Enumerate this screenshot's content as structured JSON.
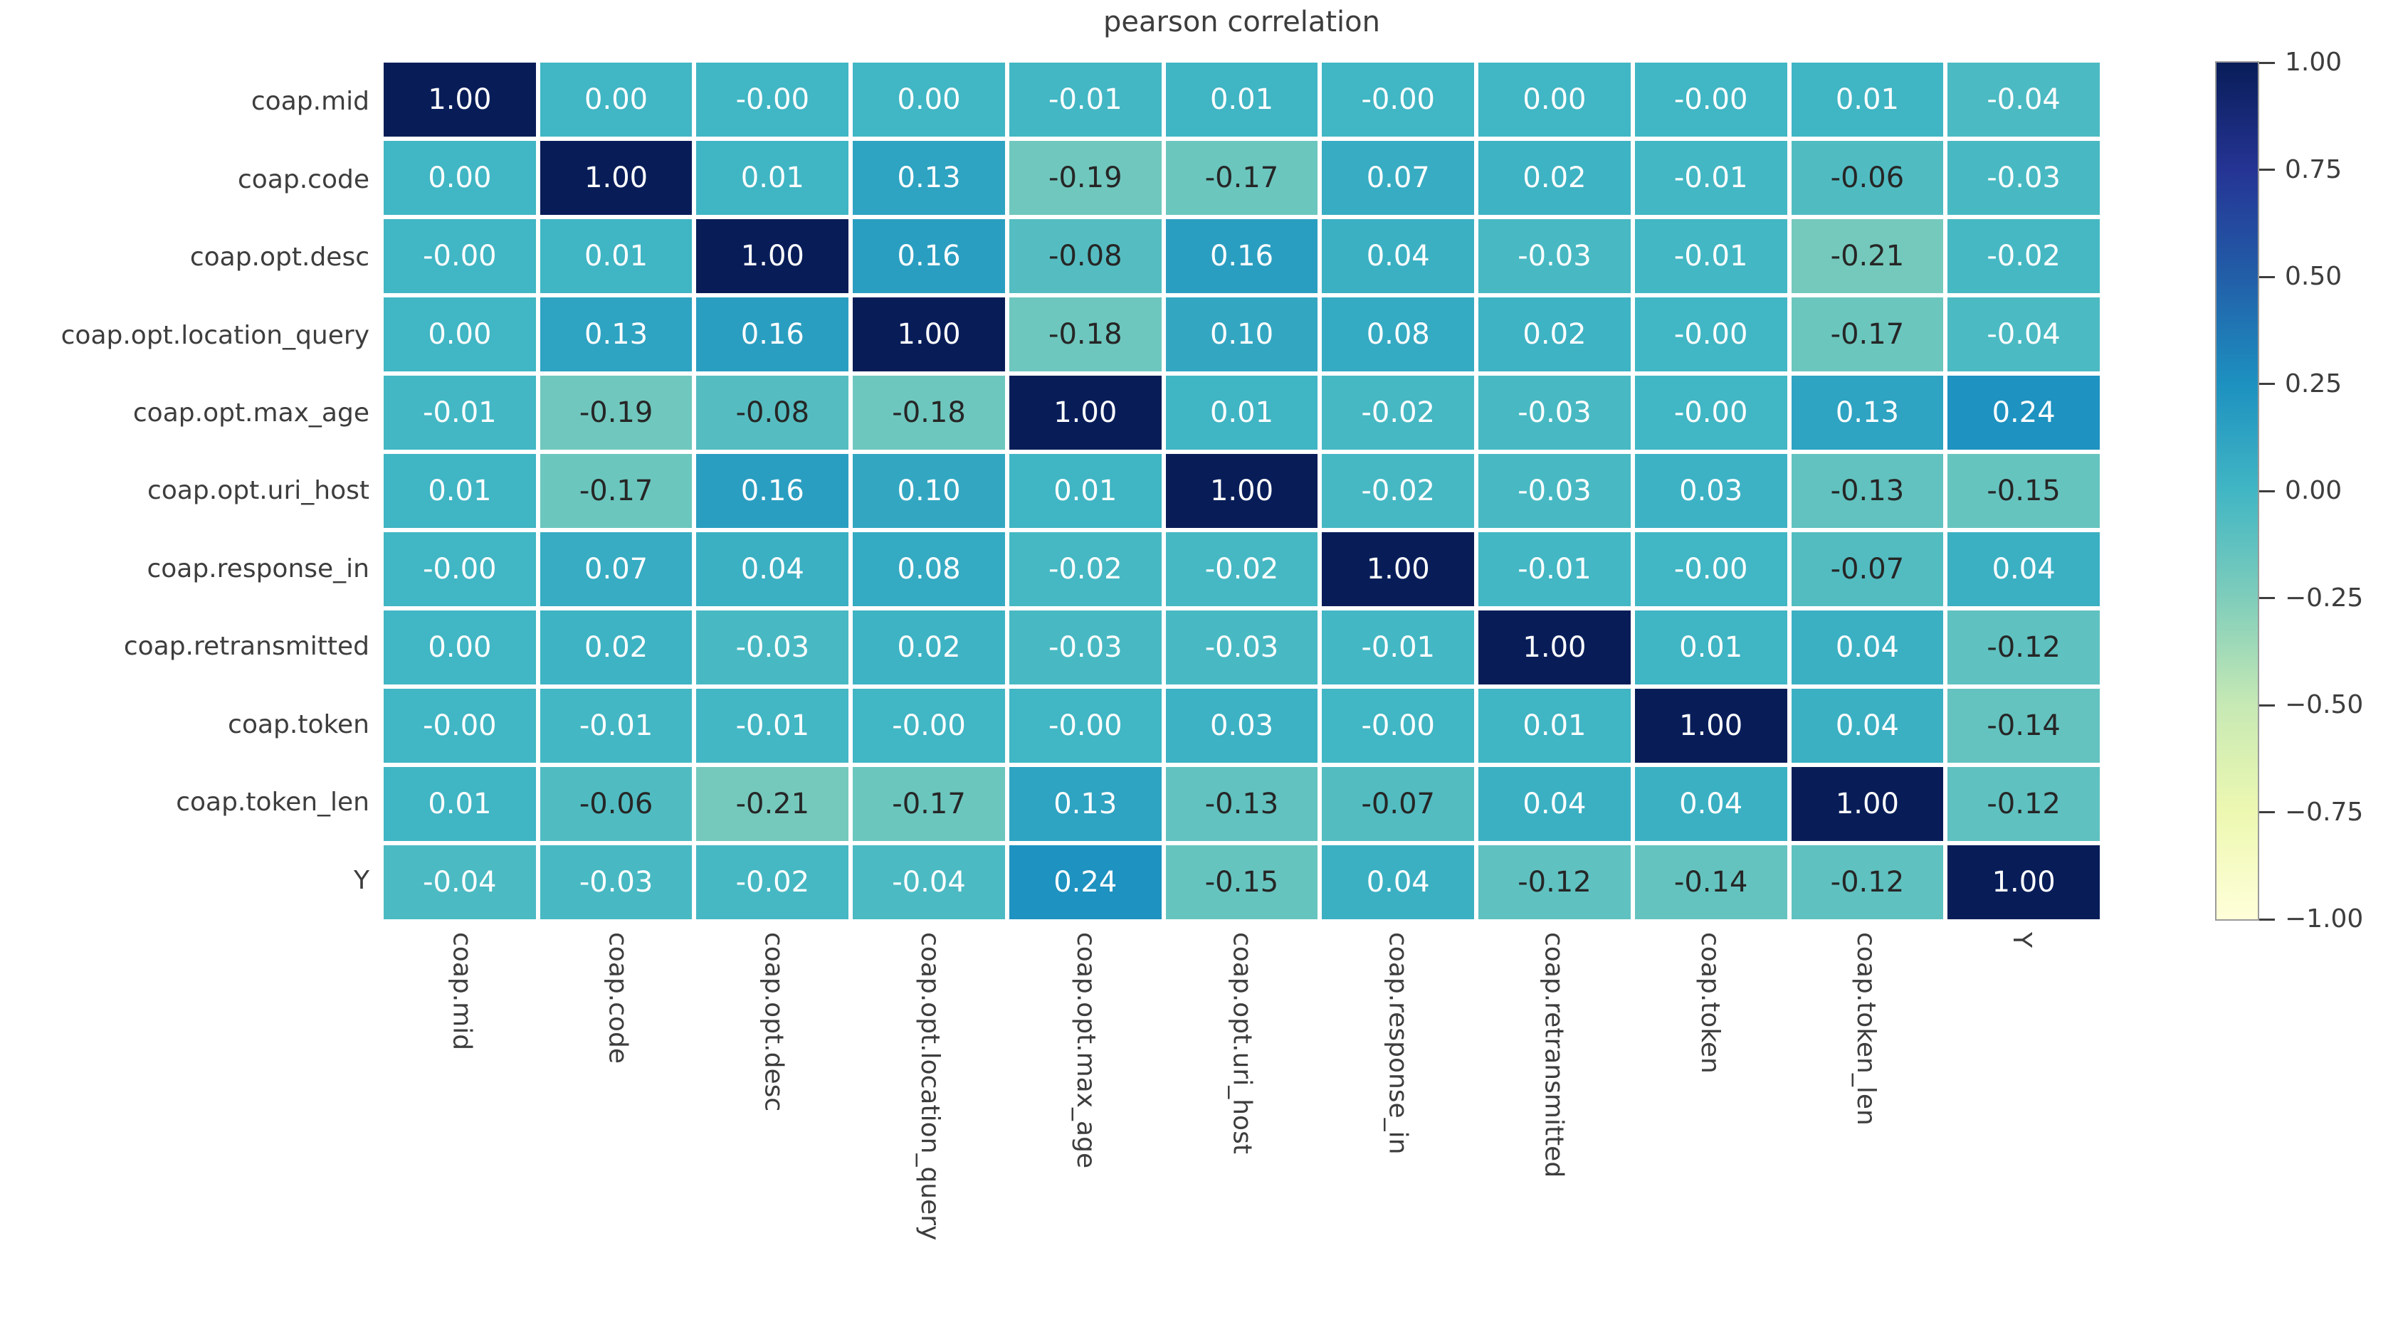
{
  "title": "pearson correlation",
  "chart_data": {
    "type": "heatmap",
    "title": "pearson correlation",
    "categories": [
      "coap.mid",
      "coap.code",
      "coap.opt.desc",
      "coap.opt.location_query",
      "coap.opt.max_age",
      "coap.opt.uri_host",
      "coap.response_in",
      "coap.retransmitted",
      "coap.token",
      "coap.token_len",
      "Y"
    ],
    "matrix": [
      [
        "1.00",
        "0.00",
        "-0.00",
        "0.00",
        "-0.01",
        "0.01",
        "-0.00",
        "0.00",
        "-0.00",
        "0.01",
        "-0.04"
      ],
      [
        "0.00",
        "1.00",
        "0.01",
        "0.13",
        "-0.19",
        "-0.17",
        "0.07",
        "0.02",
        "-0.01",
        "-0.06",
        "-0.03"
      ],
      [
        "-0.00",
        "0.01",
        "1.00",
        "0.16",
        "-0.08",
        "0.16",
        "0.04",
        "-0.03",
        "-0.01",
        "-0.21",
        "-0.02"
      ],
      [
        "0.00",
        "0.13",
        "0.16",
        "1.00",
        "-0.18",
        "0.10",
        "0.08",
        "0.02",
        "-0.00",
        "-0.17",
        "-0.04"
      ],
      [
        "-0.01",
        "-0.19",
        "-0.08",
        "-0.18",
        "1.00",
        "0.01",
        "-0.02",
        "-0.03",
        "-0.00",
        "0.13",
        "0.24"
      ],
      [
        "0.01",
        "-0.17",
        "0.16",
        "0.10",
        "0.01",
        "1.00",
        "-0.02",
        "-0.03",
        "0.03",
        "-0.13",
        "-0.15"
      ],
      [
        "-0.00",
        "0.07",
        "0.04",
        "0.08",
        "-0.02",
        "-0.02",
        "1.00",
        "-0.01",
        "-0.00",
        "-0.07",
        "0.04"
      ],
      [
        "0.00",
        "0.02",
        "-0.03",
        "0.02",
        "-0.03",
        "-0.03",
        "-0.01",
        "1.00",
        "0.01",
        "0.04",
        "-0.12"
      ],
      [
        "-0.00",
        "-0.01",
        "-0.01",
        "-0.00",
        "-0.00",
        "0.03",
        "-0.00",
        "0.01",
        "1.00",
        "0.04",
        "-0.14"
      ],
      [
        "0.01",
        "-0.06",
        "-0.21",
        "-0.17",
        "0.13",
        "-0.13",
        "-0.07",
        "0.04",
        "0.04",
        "1.00",
        "-0.12"
      ],
      [
        "-0.04",
        "-0.03",
        "-0.02",
        "-0.04",
        "0.24",
        "-0.15",
        "0.04",
        "-0.12",
        "-0.14",
        "-0.12",
        "1.00"
      ]
    ],
    "value_range": [
      -1,
      1
    ],
    "colormap": {
      "name": "YlGnBu",
      "stops": [
        [
          0.0,
          "#ffffd9"
        ],
        [
          0.125,
          "#edf8b1"
        ],
        [
          0.25,
          "#c7e9b4"
        ],
        [
          0.375,
          "#7fcdbb"
        ],
        [
          0.5,
          "#41b6c4"
        ],
        [
          0.625,
          "#1d91c0"
        ],
        [
          0.75,
          "#225ea8"
        ],
        [
          0.875,
          "#253494"
        ],
        [
          1.0,
          "#081d58"
        ]
      ]
    },
    "colorbar_ticks": [
      "1.00",
      "0.75",
      "0.50",
      "0.25",
      "0.00",
      "−0.25",
      "−0.50",
      "−0.75",
      "−1.00"
    ],
    "annotation_text_colors": {
      "light": "#ffffff",
      "dark": "#262626"
    },
    "label_color": "#3d3d3d",
    "background": "#ffffff",
    "legend_position": "right-colorbar",
    "grid_line_color": "#ffffff"
  }
}
